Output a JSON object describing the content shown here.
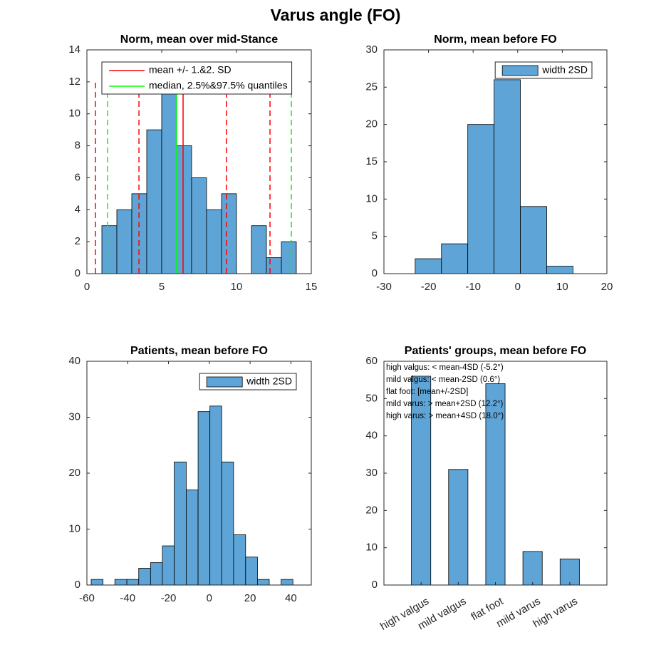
{
  "title": "Varus angle (FO)",
  "chart_data": [
    {
      "type": "histogram",
      "title": "Norm, mean over mid-Stance",
      "bins": [
        1,
        2,
        3,
        4,
        5,
        6,
        7,
        8,
        9,
        10,
        11,
        12,
        13,
        14
      ],
      "values": [
        3,
        4,
        5,
        9,
        12,
        8,
        6,
        4,
        5,
        0,
        3,
        1,
        2
      ],
      "color": "#5fa4d6",
      "xlim": [
        0,
        15
      ],
      "ylim": [
        0,
        14
      ],
      "xticks": [
        0,
        5,
        10,
        15
      ],
      "yticks": [
        0,
        2,
        4,
        6,
        8,
        10,
        12,
        14
      ],
      "legend": "upper left",
      "lines": [
        {
          "name": "mean +/- 1.&2. SD",
          "color": "#ff0000",
          "solid": [
            6.43
          ],
          "dashed": [
            0.57,
            3.48,
            9.33,
            12.24
          ],
          "top": 12
        },
        {
          "name": "median, 2.5%&97.5% quantiles",
          "color": "#00ff00",
          "solid": [
            6.0
          ],
          "dashed": [
            1.38,
            13.67
          ],
          "top": 12
        }
      ]
    },
    {
      "type": "histogram",
      "title": "Norm, mean before FO",
      "name": "width 2SD",
      "bins": [
        -23,
        -17.1,
        -11.2,
        -5.3,
        0.6,
        6.5,
        12.4
      ],
      "values": [
        2,
        4,
        20,
        26,
        9,
        1
      ],
      "color": "#5fa4d6",
      "xlim": [
        -30,
        20
      ],
      "ylim": [
        0,
        30
      ],
      "xticks": [
        -30,
        -20,
        -10,
        0,
        10,
        20
      ],
      "yticks": [
        0,
        5,
        10,
        15,
        20,
        25,
        30
      ],
      "legend": "upper right"
    },
    {
      "type": "histogram",
      "title": "Patients, mean before FO",
      "name": "width 2SD",
      "bins": [
        -57.9,
        -52.1,
        -46.3,
        -40.4,
        -34.6,
        -28.8,
        -23.0,
        -17.2,
        -11.3,
        -5.5,
        0.3,
        6.1,
        11.9,
        17.8,
        23.6,
        29.4,
        35.2,
        41.0
      ],
      "values": [
        1,
        0,
        1,
        1,
        3,
        4,
        7,
        22,
        17,
        31,
        32,
        22,
        9,
        5,
        1,
        0,
        1
      ],
      "color": "#5fa4d6",
      "xlim": [
        -60,
        50
      ],
      "ylim": [
        0,
        40
      ],
      "xticks": [
        -60,
        -40,
        -20,
        0,
        20,
        40
      ],
      "yticks": [
        0,
        10,
        20,
        30,
        40
      ],
      "legend": "upper right"
    },
    {
      "type": "bar",
      "title": "Patients' groups, mean before FO",
      "categories": [
        "high valgus",
        "mild valgus",
        "flat foot",
        "mild varus",
        "high varus"
      ],
      "values": [
        56,
        31,
        54,
        9,
        7
      ],
      "color": "#5fa4d6",
      "ylim": [
        0,
        60
      ],
      "yticks": [
        0,
        10,
        20,
        30,
        40,
        50,
        60
      ],
      "annotations": [
        "high valgus: < mean-4SD (-5.2°)",
        "mild valgus: < mean-2SD (0.6°)",
        "flat foot: [mean+/-2SD]",
        "mild varus: > mean+2SD (12.2°)",
        "high varus: > mean+4SD (18.0°)"
      ]
    }
  ]
}
